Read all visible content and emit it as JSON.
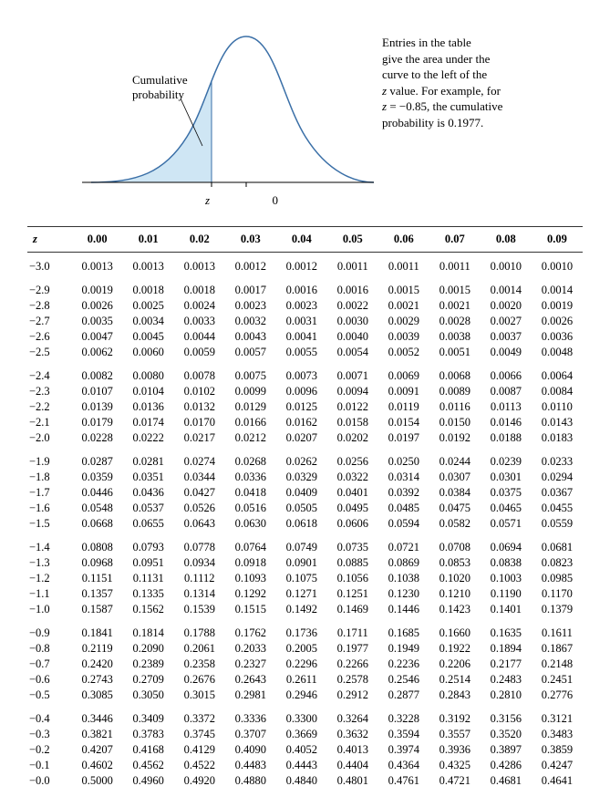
{
  "figure": {
    "cumulative_label_line1": "Cumulative",
    "cumulative_label_line2": "probability",
    "axis_z": "z",
    "axis_zero": "0",
    "caption_line1": "Entries in the table",
    "caption_line2": "give the area under the",
    "caption_line3": "curve to the left of the",
    "caption_line4_a": "z",
    "caption_line4_b": " value. For example, for",
    "caption_line5_a": "z",
    "caption_line5_b": " = −0.85, the cumulative",
    "caption_line6": "probability is 0.1977.",
    "curve": {
      "stroke": "#3a6fa7",
      "fill": "#cfe6f4",
      "axis_color": "#000000"
    }
  },
  "table": {
    "header": [
      "z",
      "0.00",
      "0.01",
      "0.02",
      "0.03",
      "0.04",
      "0.05",
      "0.06",
      "0.07",
      "0.08",
      "0.09"
    ],
    "groups": [
      [
        [
          "−3.0",
          "0.0013",
          "0.0013",
          "0.0013",
          "0.0012",
          "0.0012",
          "0.0011",
          "0.0011",
          "0.0011",
          "0.0010",
          "0.0010"
        ]
      ],
      [
        [
          "−2.9",
          "0.0019",
          "0.0018",
          "0.0018",
          "0.0017",
          "0.0016",
          "0.0016",
          "0.0015",
          "0.0015",
          "0.0014",
          "0.0014"
        ],
        [
          "−2.8",
          "0.0026",
          "0.0025",
          "0.0024",
          "0.0023",
          "0.0023",
          "0.0022",
          "0.0021",
          "0.0021",
          "0.0020",
          "0.0019"
        ],
        [
          "−2.7",
          "0.0035",
          "0.0034",
          "0.0033",
          "0.0032",
          "0.0031",
          "0.0030",
          "0.0029",
          "0.0028",
          "0.0027",
          "0.0026"
        ],
        [
          "−2.6",
          "0.0047",
          "0.0045",
          "0.0044",
          "0.0043",
          "0.0041",
          "0.0040",
          "0.0039",
          "0.0038",
          "0.0037",
          "0.0036"
        ],
        [
          "−2.5",
          "0.0062",
          "0.0060",
          "0.0059",
          "0.0057",
          "0.0055",
          "0.0054",
          "0.0052",
          "0.0051",
          "0.0049",
          "0.0048"
        ]
      ],
      [
        [
          "−2.4",
          "0.0082",
          "0.0080",
          "0.0078",
          "0.0075",
          "0.0073",
          "0.0071",
          "0.0069",
          "0.0068",
          "0.0066",
          "0.0064"
        ],
        [
          "−2.3",
          "0.0107",
          "0.0104",
          "0.0102",
          "0.0099",
          "0.0096",
          "0.0094",
          "0.0091",
          "0.0089",
          "0.0087",
          "0.0084"
        ],
        [
          "−2.2",
          "0.0139",
          "0.0136",
          "0.0132",
          "0.0129",
          "0.0125",
          "0.0122",
          "0.0119",
          "0.0116",
          "0.0113",
          "0.0110"
        ],
        [
          "−2.1",
          "0.0179",
          "0.0174",
          "0.0170",
          "0.0166",
          "0.0162",
          "0.0158",
          "0.0154",
          "0.0150",
          "0.0146",
          "0.0143"
        ],
        [
          "−2.0",
          "0.0228",
          "0.0222",
          "0.0217",
          "0.0212",
          "0.0207",
          "0.0202",
          "0.0197",
          "0.0192",
          "0.0188",
          "0.0183"
        ]
      ],
      [
        [
          "−1.9",
          "0.0287",
          "0.0281",
          "0.0274",
          "0.0268",
          "0.0262",
          "0.0256",
          "0.0250",
          "0.0244",
          "0.0239",
          "0.0233"
        ],
        [
          "−1.8",
          "0.0359",
          "0.0351",
          "0.0344",
          "0.0336",
          "0.0329",
          "0.0322",
          "0.0314",
          "0.0307",
          "0.0301",
          "0.0294"
        ],
        [
          "−1.7",
          "0.0446",
          "0.0436",
          "0.0427",
          "0.0418",
          "0.0409",
          "0.0401",
          "0.0392",
          "0.0384",
          "0.0375",
          "0.0367"
        ],
        [
          "−1.6",
          "0.0548",
          "0.0537",
          "0.0526",
          "0.0516",
          "0.0505",
          "0.0495",
          "0.0485",
          "0.0475",
          "0.0465",
          "0.0455"
        ],
        [
          "−1.5",
          "0.0668",
          "0.0655",
          "0.0643",
          "0.0630",
          "0.0618",
          "0.0606",
          "0.0594",
          "0.0582",
          "0.0571",
          "0.0559"
        ]
      ],
      [
        [
          "−1.4",
          "0.0808",
          "0.0793",
          "0.0778",
          "0.0764",
          "0.0749",
          "0.0735",
          "0.0721",
          "0.0708",
          "0.0694",
          "0.0681"
        ],
        [
          "−1.3",
          "0.0968",
          "0.0951",
          "0.0934",
          "0.0918",
          "0.0901",
          "0.0885",
          "0.0869",
          "0.0853",
          "0.0838",
          "0.0823"
        ],
        [
          "−1.2",
          "0.1151",
          "0.1131",
          "0.1112",
          "0.1093",
          "0.1075",
          "0.1056",
          "0.1038",
          "0.1020",
          "0.1003",
          "0.0985"
        ],
        [
          "−1.1",
          "0.1357",
          "0.1335",
          "0.1314",
          "0.1292",
          "0.1271",
          "0.1251",
          "0.1230",
          "0.1210",
          "0.1190",
          "0.1170"
        ],
        [
          "−1.0",
          "0.1587",
          "0.1562",
          "0.1539",
          "0.1515",
          "0.1492",
          "0.1469",
          "0.1446",
          "0.1423",
          "0.1401",
          "0.1379"
        ]
      ],
      [
        [
          "−0.9",
          "0.1841",
          "0.1814",
          "0.1788",
          "0.1762",
          "0.1736",
          "0.1711",
          "0.1685",
          "0.1660",
          "0.1635",
          "0.1611"
        ],
        [
          "−0.8",
          "0.2119",
          "0.2090",
          "0.2061",
          "0.2033",
          "0.2005",
          "0.1977",
          "0.1949",
          "0.1922",
          "0.1894",
          "0.1867"
        ],
        [
          "−0.7",
          "0.2420",
          "0.2389",
          "0.2358",
          "0.2327",
          "0.2296",
          "0.2266",
          "0.2236",
          "0.2206",
          "0.2177",
          "0.2148"
        ],
        [
          "−0.6",
          "0.2743",
          "0.2709",
          "0.2676",
          "0.2643",
          "0.2611",
          "0.2578",
          "0.2546",
          "0.2514",
          "0.2483",
          "0.2451"
        ],
        [
          "−0.5",
          "0.3085",
          "0.3050",
          "0.3015",
          "0.2981",
          "0.2946",
          "0.2912",
          "0.2877",
          "0.2843",
          "0.2810",
          "0.2776"
        ]
      ],
      [
        [
          "−0.4",
          "0.3446",
          "0.3409",
          "0.3372",
          "0.3336",
          "0.3300",
          "0.3264",
          "0.3228",
          "0.3192",
          "0.3156",
          "0.3121"
        ],
        [
          "−0.3",
          "0.3821",
          "0.3783",
          "0.3745",
          "0.3707",
          "0.3669",
          "0.3632",
          "0.3594",
          "0.3557",
          "0.3520",
          "0.3483"
        ],
        [
          "−0.2",
          "0.4207",
          "0.4168",
          "0.4129",
          "0.4090",
          "0.4052",
          "0.4013",
          "0.3974",
          "0.3936",
          "0.3897",
          "0.3859"
        ],
        [
          "−0.1",
          "0.4602",
          "0.4562",
          "0.4522",
          "0.4483",
          "0.4443",
          "0.4404",
          "0.4364",
          "0.4325",
          "0.4286",
          "0.4247"
        ],
        [
          "−0.0",
          "0.5000",
          "0.4960",
          "0.4920",
          "0.4880",
          "0.4840",
          "0.4801",
          "0.4761",
          "0.4721",
          "0.4681",
          "0.4641"
        ]
      ]
    ]
  }
}
